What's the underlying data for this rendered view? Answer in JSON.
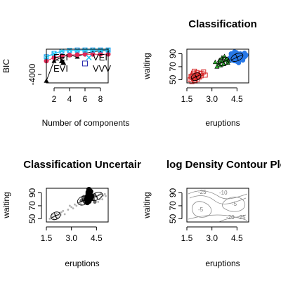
{
  "chart_data": [
    {
      "type": "line",
      "panel": "BIC",
      "title": "",
      "xlabel": "Number of components",
      "ylabel": "BIC",
      "xlim": [
        1,
        9
      ],
      "ylim": [
        -5000,
        -1000
      ],
      "x_ticks": [
        "2",
        "4",
        "6",
        "8"
      ],
      "y_ticks": [
        "-4000"
      ],
      "legend": [
        "EEI",
        "EVI",
        "VEI",
        "VVV"
      ],
      "legend_placement": "bottom-right",
      "x": [
        1,
        2,
        3,
        4,
        5,
        6,
        7,
        8,
        9
      ],
      "series": [
        {
          "symbol": "triangle",
          "color": "#000000",
          "values": [
            -4750,
            -2400,
            -1900,
            -1700,
            -1900,
            -1500,
            -1300,
            -1200,
            -1150
          ]
        },
        {
          "symbol": "circle",
          "color": "#df2a56",
          "values": [
            -2400,
            -2000,
            -1800,
            -1700,
            -1650,
            -1600,
            -1600,
            -1600,
            -1600
          ]
        },
        {
          "symbol": "square",
          "color": "#2196f3",
          "values": [
            -1900,
            -1500,
            -1250,
            -1150,
            -1100,
            -1100,
            -1100,
            -1100,
            -1100
          ]
        },
        {
          "symbol": "x",
          "color": "#1fc8f0",
          "values": [
            -1950,
            -1520,
            -1220,
            -1120,
            -1150,
            -1100,
            -1100,
            -1100,
            -1100
          ]
        }
      ],
      "extra_points": [
        {
          "x": 3,
          "y": -2400,
          "symbol": "triangle",
          "color": "#000000"
        },
        {
          "x": 3.2,
          "y": -2600,
          "symbol": "triangle",
          "color": "#000000"
        },
        {
          "x": 6.5,
          "y": -2000,
          "symbol": "x",
          "color": "#1fc8f0"
        },
        {
          "x": 6,
          "y": -2700,
          "symbol": "square",
          "color": "#2d2db0"
        }
      ]
    },
    {
      "type": "scatter",
      "panel": "Classification",
      "title": "Classification",
      "xlabel": "eruptions",
      "ylabel": "waiting",
      "xlim": [
        1.5,
        5.2
      ],
      "ylim": [
        45,
        97
      ],
      "x_ticks": [
        "1.5",
        "3.0",
        "4.5"
      ],
      "y_ticks": [
        "50",
        "70",
        "90"
      ],
      "series": [
        {
          "cluster": 1,
          "symbol": "square",
          "color": "#d62728",
          "points": [
            [
              1.8,
              54
            ],
            [
              1.9,
              52
            ],
            [
              2.0,
              56
            ],
            [
              2.1,
              58
            ],
            [
              1.7,
              50
            ],
            [
              1.95,
              49
            ],
            [
              2.2,
              55
            ],
            [
              2.3,
              59
            ],
            [
              1.85,
              57
            ],
            [
              2.05,
              53
            ],
            [
              2.4,
              60
            ],
            [
              2.15,
              51
            ],
            [
              1.75,
              55
            ],
            [
              2.25,
              54
            ],
            [
              1.9,
              60
            ],
            [
              2.35,
              56
            ],
            [
              2.0,
              48
            ],
            [
              2.5,
              62
            ],
            [
              1.8,
              47
            ],
            [
              2.1,
              61
            ],
            [
              2.6,
              57
            ],
            [
              1.95,
              63
            ]
          ]
        },
        {
          "cluster": 2,
          "symbol": "triangle",
          "color": "#2cb12c",
          "points": [
            [
              3.4,
              75
            ],
            [
              3.6,
              78
            ],
            [
              3.8,
              80
            ],
            [
              3.7,
              74
            ],
            [
              3.9,
              82
            ],
            [
              3.5,
              72
            ],
            [
              4.0,
              79
            ],
            [
              3.3,
              70
            ],
            [
              3.6,
              84
            ],
            [
              3.95,
              76
            ],
            [
              3.45,
              80
            ],
            [
              3.75,
              86
            ],
            [
              4.05,
              83
            ],
            [
              3.2,
              77
            ]
          ]
        },
        {
          "cluster": 3,
          "symbol": "circle",
          "color": "#2878e6",
          "points": [
            [
              4.2,
              80
            ],
            [
              4.4,
              83
            ],
            [
              4.5,
              78
            ],
            [
              4.6,
              85
            ],
            [
              4.3,
              88
            ],
            [
              4.7,
              82
            ],
            [
              4.8,
              87
            ],
            [
              4.1,
              84
            ],
            [
              4.55,
              90
            ],
            [
              4.9,
              84
            ],
            [
              4.35,
              79
            ],
            [
              4.65,
              80
            ],
            [
              4.25,
              86
            ],
            [
              4.75,
              89
            ],
            [
              5.0,
              86
            ],
            [
              4.45,
              92
            ],
            [
              4.85,
              80
            ],
            [
              4.15,
              90
            ],
            [
              5.05,
              88
            ],
            [
              4.6,
              76
            ],
            [
              4.3,
              83
            ],
            [
              4.5,
              87
            ],
            [
              4.8,
              84
            ],
            [
              4.4,
              81
            ],
            [
              4.7,
              90
            ],
            [
              4.2,
              87
            ],
            [
              4.95,
              91
            ],
            [
              4.55,
              84
            ],
            [
              4.35,
              93
            ],
            [
              4.65,
              86
            ]
          ]
        }
      ],
      "ellipses": [
        {
          "cx": 2.05,
          "cy": 54.5,
          "rx": 0.3,
          "ry": 5.5
        },
        {
          "cx": 3.7,
          "cy": 78,
          "rx": 0.35,
          "ry": 6.5
        },
        {
          "cx": 4.5,
          "cy": 84.5,
          "rx": 0.38,
          "ry": 5.5
        }
      ]
    },
    {
      "type": "scatter",
      "panel": "Classification Uncertainty",
      "title": "Classification Uncertair",
      "xlabel": "eruptions",
      "ylabel": "waiting",
      "xlim": [
        1.5,
        5.2
      ],
      "ylim": [
        45,
        97
      ],
      "x_ticks": [
        "1.5",
        "3.0",
        "4.5"
      ],
      "y_ticks": [
        "50",
        "70",
        "90"
      ],
      "series": [
        {
          "name": "",
          "color": "#b3b3b3",
          "size": "small",
          "points": [
            [
              1.7,
              50
            ],
            [
              1.8,
              54
            ],
            [
              1.9,
              52
            ],
            [
              2.0,
              56
            ],
            [
              2.1,
              58
            ],
            [
              2.2,
              55
            ],
            [
              2.3,
              59
            ],
            [
              2.4,
              60
            ],
            [
              2.5,
              62
            ],
            [
              1.85,
              57
            ],
            [
              2.05,
              53
            ],
            [
              2.15,
              51
            ],
            [
              2.35,
              56
            ],
            [
              1.95,
              49
            ],
            [
              2.6,
              57
            ],
            [
              3.0,
              68
            ],
            [
              3.2,
              72
            ],
            [
              3.3,
              70
            ],
            [
              3.5,
              74
            ],
            [
              3.6,
              72
            ],
            [
              4.6,
              76
            ],
            [
              4.7,
              80
            ],
            [
              4.8,
              84
            ],
            [
              4.9,
              86
            ],
            [
              5.0,
              88
            ],
            [
              4.55,
              82
            ],
            [
              4.65,
              87
            ],
            [
              4.75,
              89
            ],
            [
              4.85,
              80
            ],
            [
              5.05,
              85
            ],
            [
              4.45,
              78
            ],
            [
              3.1,
              66
            ],
            [
              2.8,
              64
            ],
            [
              2.9,
              70
            ]
          ]
        },
        {
          "name": "",
          "color": "#666666",
          "size": "medium",
          "points": [
            [
              3.6,
              78
            ],
            [
              3.7,
              80
            ],
            [
              3.8,
              76
            ],
            [
              3.75,
              84
            ],
            [
              4.3,
              80
            ],
            [
              4.4,
              76
            ],
            [
              4.35,
              86
            ]
          ]
        },
        {
          "name": "",
          "color": "#000000",
          "size": "large",
          "points": [
            [
              4.0,
              79
            ],
            [
              4.05,
              83
            ],
            [
              4.1,
              87
            ],
            [
              4.0,
              91
            ],
            [
              4.1,
              93
            ],
            [
              3.95,
              84
            ],
            [
              4.05,
              77
            ],
            [
              4.15,
              81
            ],
            [
              4.0,
              88
            ],
            [
              4.1,
              90
            ],
            [
              3.9,
              80
            ],
            [
              4.2,
              85
            ],
            [
              4.15,
              92
            ],
            [
              4.05,
              95
            ],
            [
              3.95,
              75
            ]
          ]
        }
      ],
      "ellipses": [
        {
          "cx": 2.05,
          "cy": 54.5,
          "rx": 0.3,
          "ry": 5.5
        },
        {
          "cx": 3.7,
          "cy": 78,
          "rx": 0.35,
          "ry": 6.5
        },
        {
          "cx": 4.5,
          "cy": 84.5,
          "rx": 0.38,
          "ry": 5.5
        }
      ]
    },
    {
      "type": "contour",
      "panel": "log Density Contour Plot",
      "title": "log Density Contour Plc",
      "xlabel": "eruptions",
      "ylabel": "waiting",
      "xlim": [
        1.5,
        5.2
      ],
      "ylim": [
        45,
        97
      ],
      "x_ticks": [
        "1.5",
        "3.0",
        "4.5"
      ],
      "y_ticks": [
        "50",
        "70",
        "90"
      ],
      "contour_labels": [
        "-25",
        "-10",
        "-5",
        "-5",
        "-20",
        "-25"
      ],
      "line_color": "#8c8c8c"
    }
  ]
}
